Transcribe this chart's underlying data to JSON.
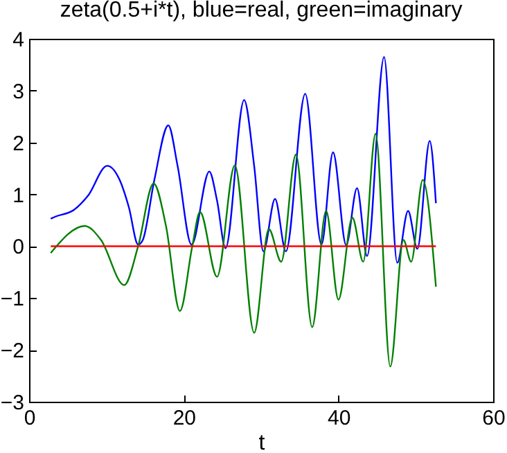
{
  "chart_data": {
    "type": "line",
    "title": "zeta(0.5+i*t), blue=real, green=imaginary",
    "xlabel": "t",
    "xlim": [
      0,
      60
    ],
    "xticks": [
      0,
      20,
      40,
      60
    ],
    "ylim": [
      -3,
      4
    ],
    "yticks": [
      -3,
      -2,
      -1,
      0,
      1,
      2,
      3,
      4
    ],
    "grid": false,
    "marker": "none",
    "line_style": "solid",
    "series": [
      {
        "color": "#0000ff",
        "x": [
          2.8,
          3.4,
          5.8,
          7.6,
          10.1,
          11.7,
          12.9,
          14.1,
          14.7,
          16.2,
          18.0,
          19.2,
          21.0,
          23.3,
          24.3,
          25.4,
          27.8,
          29.1,
          30.3,
          31.8,
          33.2,
          35.7,
          37.8,
          39.3,
          41.0,
          42.4,
          43.7,
          45.9,
          47.6,
          49.0,
          50.2,
          51.8,
          52.6
        ],
        "values": [
          0.53,
          0.57,
          0.7,
          0.97,
          1.55,
          1.28,
          0.75,
          0.03,
          0.12,
          1.28,
          2.33,
          1.55,
          0.03,
          1.44,
          0.88,
          -0.04,
          2.82,
          1.55,
          -0.1,
          0.91,
          -0.1,
          2.94,
          0.03,
          1.81,
          0.02,
          1.12,
          -0.19,
          3.65,
          -0.32,
          0.68,
          -0.05,
          2.03,
          0.83
        ]
      },
      {
        "color": "#008000",
        "x": [
          2.8,
          7.2,
          9.3,
          12.3,
          14.1,
          16.1,
          17.7,
          19.5,
          21.1,
          22.1,
          24.3,
          26.6,
          29.1,
          31.0,
          32.6,
          34.5,
          36.6,
          38.4,
          40.0,
          41.8,
          43.2,
          44.8,
          46.7,
          48.4,
          49.4,
          50.9,
          52.6
        ],
        "values": [
          -0.13,
          0.39,
          0.12,
          -0.75,
          0,
          1.21,
          0.39,
          -1.25,
          0,
          0.66,
          -0.59,
          1.56,
          -1.67,
          0.33,
          -0.3,
          1.77,
          -1.56,
          0.68,
          -1.03,
          0.55,
          -0.3,
          2.17,
          -2.32,
          0.12,
          -0.3,
          1.28,
          -0.78
        ]
      },
      {
        "color": "#ff0000",
        "x": [
          2.8,
          52.6
        ],
        "values": [
          0,
          0
        ]
      }
    ]
  }
}
